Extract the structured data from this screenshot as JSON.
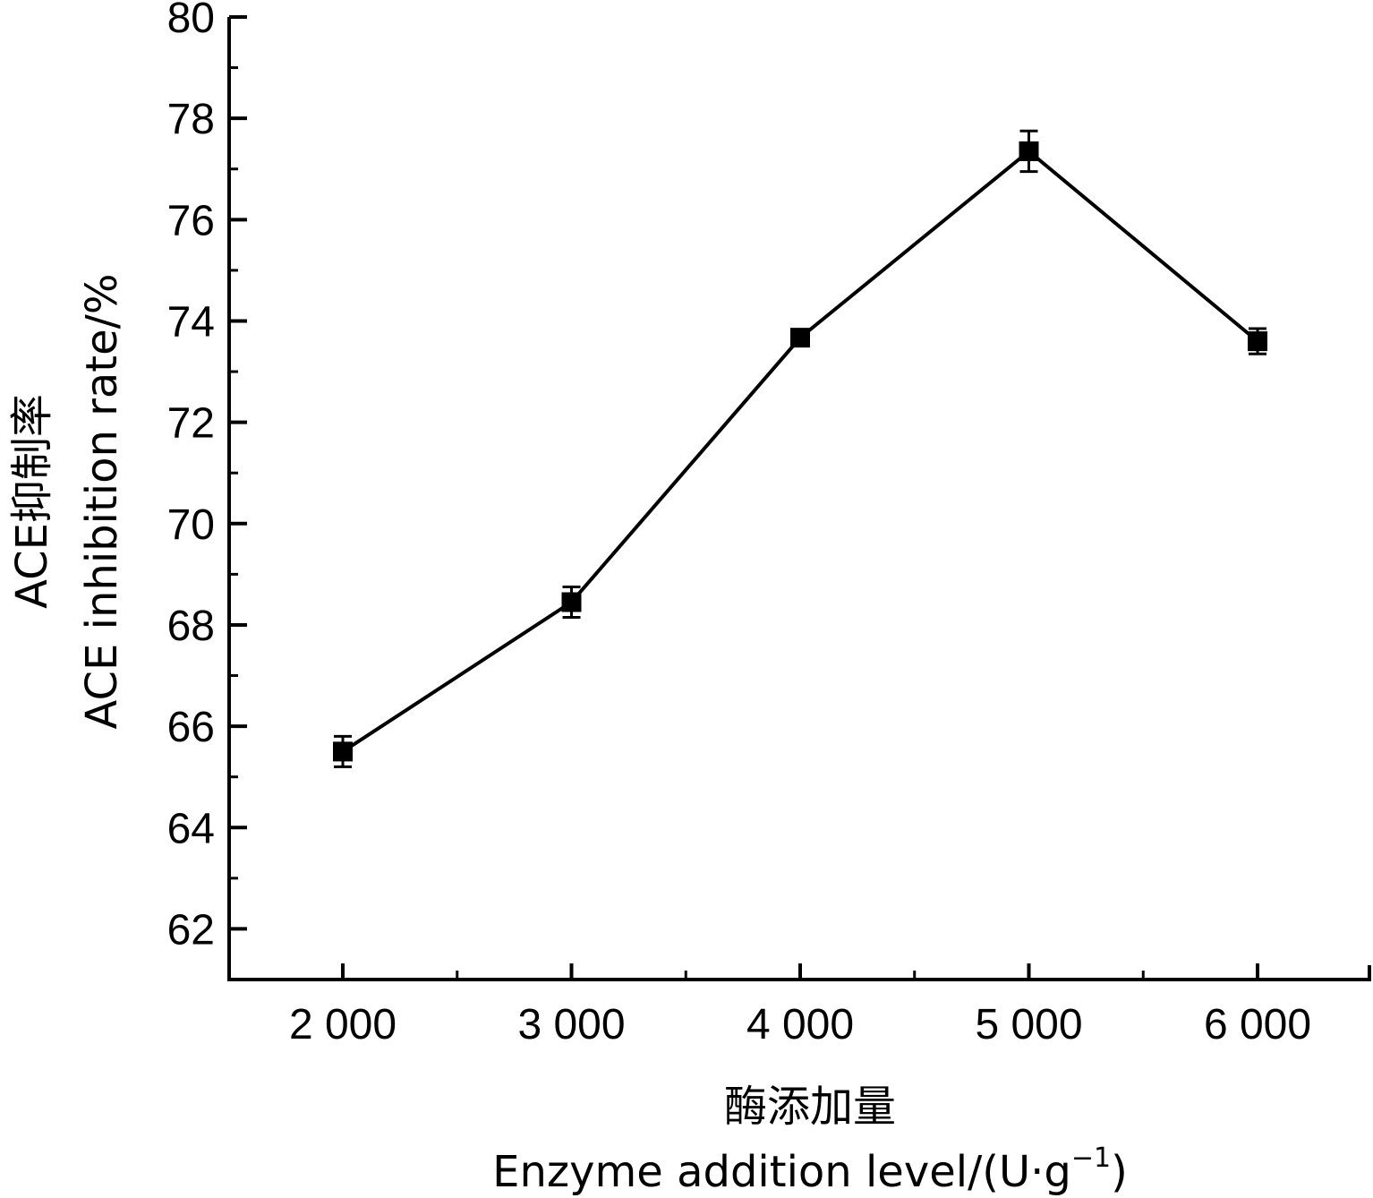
{
  "chart_data": {
    "type": "line",
    "xlabel_cn": "酶添加量",
    "xlabel_en": "Enzyme addition level/(U·g",
    "xlabel_en_sup": "−1",
    "xlabel_en_close": ")",
    "ylabel_cn": "ACE抑制率",
    "ylabel_en": "ACE inhibition rate/%",
    "x_ticks": [
      "2 000",
      "3 000",
      "4 000",
      "5 000",
      "6 000"
    ],
    "y_ticks": [
      "62",
      "64",
      "66",
      "68",
      "70",
      "72",
      "74",
      "76",
      "78",
      "80"
    ],
    "xlim": [
      1500,
      6500
    ],
    "ylim": [
      61,
      80
    ],
    "x": [
      2000,
      3000,
      4000,
      5000,
      6000
    ],
    "y": [
      65.5,
      68.45,
      73.67,
      77.35,
      73.6
    ],
    "error": [
      0.3,
      0.3,
      0.15,
      0.4,
      0.25
    ],
    "marker": "square",
    "color": "#000000",
    "grid": false,
    "legend": "none"
  }
}
